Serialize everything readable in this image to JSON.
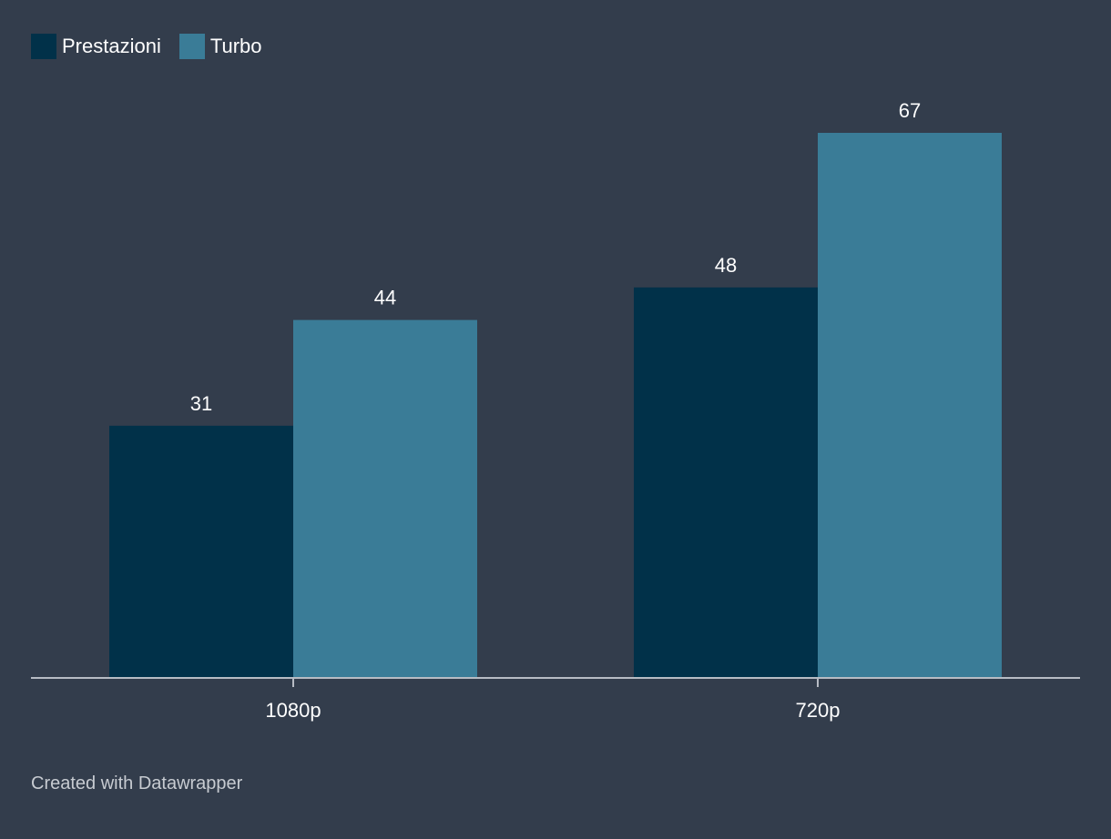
{
  "colors": {
    "background": "#333d4c",
    "axis": "#b7bcc4",
    "text": "#ffffff",
    "credit": "#c7cbd1"
  },
  "chart_data": {
    "type": "bar",
    "title": "",
    "xlabel": "",
    "ylabel": "",
    "categories": [
      "1080p",
      "720p"
    ],
    "series": [
      {
        "name": "Prestazioni",
        "color": "#013149",
        "values": [
          31,
          48
        ]
      },
      {
        "name": "Turbo",
        "color": "#3a7c97",
        "values": [
          44,
          67
        ]
      }
    ],
    "ylim": [
      0,
      67
    ],
    "grid": false,
    "legend_position": "top-left",
    "data_labels": true
  },
  "credit": "Created with Datawrapper"
}
